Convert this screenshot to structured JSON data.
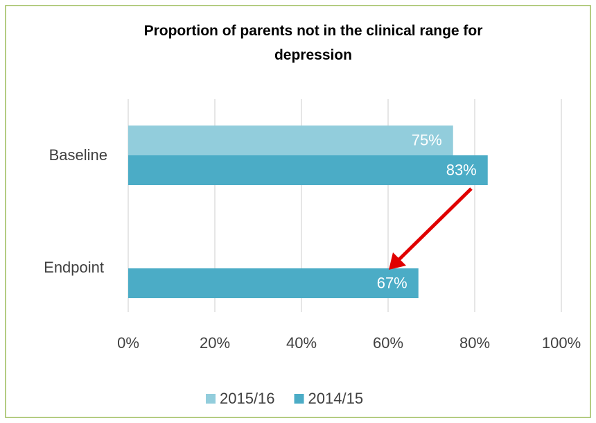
{
  "chart_data": {
    "type": "hbar",
    "title": "Proportion of parents not in the clinical range for depression",
    "categories": [
      "Baseline",
      "Endpoint"
    ],
    "series": [
      {
        "name": "2015/16",
        "color": "#92cddc",
        "values": [
          75,
          null
        ],
        "value_labels": [
          "75%",
          null
        ]
      },
      {
        "name": "2014/15",
        "color": "#4bacc6",
        "values": [
          83,
          67
        ],
        "value_labels": [
          "83%",
          "67%"
        ]
      }
    ],
    "xlim": [
      0,
      100
    ],
    "xticks": [
      {
        "value": 0,
        "label": "0%"
      },
      {
        "value": 20,
        "label": "20%"
      },
      {
        "value": 40,
        "label": "40%"
      },
      {
        "value": 60,
        "label": "60%"
      },
      {
        "value": 80,
        "label": "80%"
      },
      {
        "value": 100,
        "label": "100%"
      }
    ],
    "grid": true,
    "legend": "bottom"
  }
}
